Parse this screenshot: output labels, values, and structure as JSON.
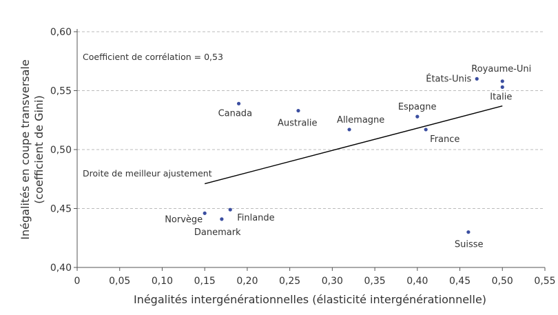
{
  "chart_data": {
    "type": "scatter",
    "xlabel": "Inégalités intergénérationnelles (élasticité intergénérationnelle)",
    "ylabel_line1": "Inégalités en coupe transversale",
    "ylabel_line2": "(coefficient de Gini)",
    "xlim": [
      0,
      0.55
    ],
    "ylim": [
      0.4,
      0.6
    ],
    "xticks": [
      0,
      0.05,
      0.1,
      0.15,
      0.2,
      0.25,
      0.3,
      0.35,
      0.4,
      0.45,
      0.5,
      0.55
    ],
    "xtick_labels": [
      "0",
      "0,05",
      "0,10",
      "0,15",
      "0,20",
      "0,25",
      "0,30",
      "0,35",
      "0,40",
      "0,45",
      "0,50",
      "0,55"
    ],
    "yticks": [
      0.4,
      0.45,
      0.5,
      0.55,
      0.6
    ],
    "ytick_labels": [
      "0,40",
      "0,45",
      "0,50",
      "0,55",
      "0,60"
    ],
    "grid": "horizontal dashed",
    "point_color": "#3b4ea0",
    "annotation": "Coefficient de corrélation = 0,53",
    "fit_line": {
      "label": "Droite de meilleur ajustement",
      "x": [
        0.15,
        0.5
      ],
      "y": [
        0.471,
        0.537
      ]
    },
    "points": [
      {
        "label": "Royaume-Uni",
        "x": 0.5,
        "y": 0.558
      },
      {
        "label": "Italie",
        "x": 0.5,
        "y": 0.553
      },
      {
        "label": "États-Unis",
        "x": 0.47,
        "y": 0.56
      },
      {
        "label": "Espagne",
        "x": 0.4,
        "y": 0.528
      },
      {
        "label": "France",
        "x": 0.41,
        "y": 0.517
      },
      {
        "label": "Allemagne",
        "x": 0.32,
        "y": 0.517
      },
      {
        "label": "Australie",
        "x": 0.26,
        "y": 0.533
      },
      {
        "label": "Canada",
        "x": 0.19,
        "y": 0.539
      },
      {
        "label": "Norvège",
        "x": 0.15,
        "y": 0.446
      },
      {
        "label": "Danemark",
        "x": 0.17,
        "y": 0.441
      },
      {
        "label": "Finlande",
        "x": 0.18,
        "y": 0.449
      },
      {
        "label": "Suisse",
        "x": 0.46,
        "y": 0.43
      }
    ]
  }
}
